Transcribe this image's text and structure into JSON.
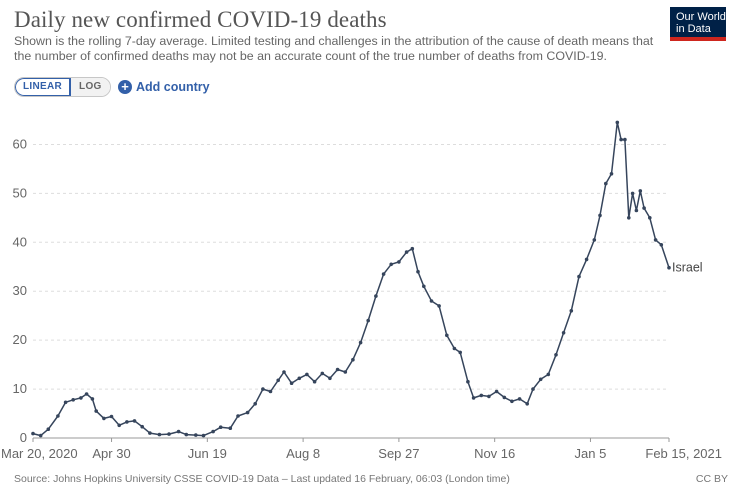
{
  "header": {
    "title": "Daily new confirmed COVID-19 deaths",
    "subtitle": "Shown is the rolling 7-day average. Limited testing and challenges in the attribution of the cause of death means that the number of confirmed deaths may not be an accurate count of the true number of deaths from COVID-19."
  },
  "logo": {
    "line1": "Our World",
    "line2": "in Data"
  },
  "controls": {
    "linear_label": "LINEAR",
    "log_label": "LOG",
    "add_country_label": "Add country"
  },
  "footer": {
    "source": "Source: Johns Hopkins University CSSE COVID-19 Data – Last updated 16 February, 06:03 (London time)",
    "license": "CC BY"
  },
  "colors": {
    "line": "#36455c",
    "grid": "#dddddd",
    "accent": "#3360a9",
    "logo_bg": "#002147",
    "logo_stripe": "#ce261e"
  },
  "chart_data": {
    "type": "line",
    "title": "Daily new confirmed COVID-19 deaths",
    "xlabel": "",
    "ylabel": "",
    "ylim": [
      0,
      65
    ],
    "xlim": [
      "2020-03-20",
      "2021-02-15"
    ],
    "grid": "horizontal dashed",
    "legend": "end-of-line label",
    "x_ticks": [
      {
        "date": "2020-03-20",
        "label": "Mar 20, 2020"
      },
      {
        "date": "2020-04-30",
        "label": "Apr 30"
      },
      {
        "date": "2020-06-19",
        "label": "Jun 19"
      },
      {
        "date": "2020-08-08",
        "label": "Aug 8"
      },
      {
        "date": "2020-09-27",
        "label": "Sep 27"
      },
      {
        "date": "2020-11-16",
        "label": "Nov 16"
      },
      {
        "date": "2021-01-05",
        "label": "Jan 5"
      },
      {
        "date": "2021-02-15",
        "label": "Feb 15, 2021"
      }
    ],
    "y_ticks": [
      0,
      10,
      20,
      30,
      40,
      50,
      60
    ],
    "series": [
      {
        "name": "Israel",
        "points": [
          [
            "2020-03-20",
            0.9
          ],
          [
            "2020-03-24",
            0.5
          ],
          [
            "2020-03-28",
            1.8
          ],
          [
            "2020-04-02",
            4.5
          ],
          [
            "2020-04-06",
            7.3
          ],
          [
            "2020-04-10",
            7.8
          ],
          [
            "2020-04-14",
            8.2
          ],
          [
            "2020-04-17",
            9.0
          ],
          [
            "2020-04-20",
            8.0
          ],
          [
            "2020-04-22",
            5.5
          ],
          [
            "2020-04-26",
            4.0
          ],
          [
            "2020-04-30",
            4.4
          ],
          [
            "2020-05-04",
            2.6
          ],
          [
            "2020-05-08",
            3.3
          ],
          [
            "2020-05-12",
            3.5
          ],
          [
            "2020-05-16",
            2.3
          ],
          [
            "2020-05-20",
            1.0
          ],
          [
            "2020-05-25",
            0.7
          ],
          [
            "2020-05-30",
            0.8
          ],
          [
            "2020-06-04",
            1.3
          ],
          [
            "2020-06-08",
            0.7
          ],
          [
            "2020-06-13",
            0.6
          ],
          [
            "2020-06-17",
            0.5
          ],
          [
            "2020-06-22",
            1.3
          ],
          [
            "2020-06-26",
            2.2
          ],
          [
            "2020-07-01",
            2.0
          ],
          [
            "2020-07-05",
            4.5
          ],
          [
            "2020-07-10",
            5.2
          ],
          [
            "2020-07-14",
            7.0
          ],
          [
            "2020-07-18",
            10.0
          ],
          [
            "2020-07-22",
            9.5
          ],
          [
            "2020-07-26",
            11.8
          ],
          [
            "2020-07-29",
            13.5
          ],
          [
            "2020-08-02",
            11.2
          ],
          [
            "2020-08-06",
            12.2
          ],
          [
            "2020-08-10",
            13.0
          ],
          [
            "2020-08-14",
            11.5
          ],
          [
            "2020-08-18",
            13.2
          ],
          [
            "2020-08-22",
            12.2
          ],
          [
            "2020-08-26",
            14.0
          ],
          [
            "2020-08-30",
            13.5
          ],
          [
            "2020-09-03",
            16.0
          ],
          [
            "2020-09-07",
            19.5
          ],
          [
            "2020-09-11",
            24.0
          ],
          [
            "2020-09-15",
            29.0
          ],
          [
            "2020-09-19",
            33.5
          ],
          [
            "2020-09-23",
            35.5
          ],
          [
            "2020-09-27",
            36.0
          ],
          [
            "2020-10-01",
            38.0
          ],
          [
            "2020-10-04",
            38.7
          ],
          [
            "2020-10-07",
            34.0
          ],
          [
            "2020-10-10",
            31.0
          ],
          [
            "2020-10-14",
            28.0
          ],
          [
            "2020-10-18",
            27.0
          ],
          [
            "2020-10-22",
            21.0
          ],
          [
            "2020-10-26",
            18.3
          ],
          [
            "2020-10-29",
            17.5
          ],
          [
            "2020-11-02",
            11.5
          ],
          [
            "2020-11-05",
            8.2
          ],
          [
            "2020-11-09",
            8.7
          ],
          [
            "2020-11-13",
            8.5
          ],
          [
            "2020-11-17",
            9.5
          ],
          [
            "2020-11-21",
            8.3
          ],
          [
            "2020-11-25",
            7.5
          ],
          [
            "2020-11-29",
            8.0
          ],
          [
            "2020-12-03",
            7.0
          ],
          [
            "2020-12-06",
            10.0
          ],
          [
            "2020-12-10",
            12.0
          ],
          [
            "2020-12-14",
            13.0
          ],
          [
            "2020-12-18",
            17.0
          ],
          [
            "2020-12-22",
            21.5
          ],
          [
            "2020-12-26",
            26.0
          ],
          [
            "2020-12-30",
            33.0
          ],
          [
            "2021-01-03",
            36.5
          ],
          [
            "2021-01-07",
            40.5
          ],
          [
            "2021-01-10",
            45.5
          ],
          [
            "2021-01-13",
            52.0
          ],
          [
            "2021-01-16",
            54.0
          ],
          [
            "2021-01-19",
            64.5
          ],
          [
            "2021-01-21",
            61.0
          ],
          [
            "2021-01-23",
            61.0
          ],
          [
            "2021-01-25",
            45.0
          ],
          [
            "2021-01-27",
            50.0
          ],
          [
            "2021-01-29",
            46.5
          ],
          [
            "2021-01-31",
            50.5
          ],
          [
            "2021-02-02",
            47.0
          ],
          [
            "2021-02-05",
            45.0
          ],
          [
            "2021-02-08",
            40.5
          ],
          [
            "2021-02-11",
            39.5
          ],
          [
            "2021-02-15",
            34.8
          ]
        ]
      }
    ]
  }
}
